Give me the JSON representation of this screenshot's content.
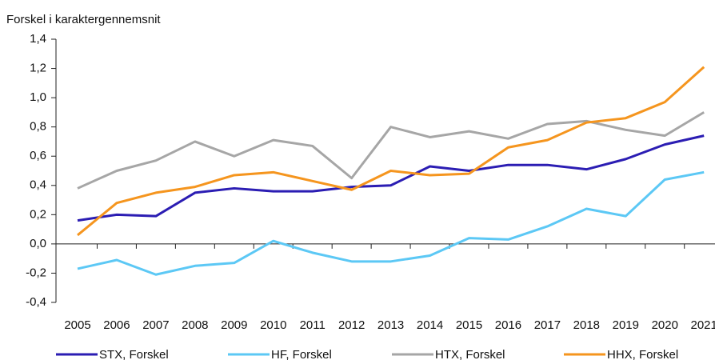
{
  "chart_data": {
    "type": "line",
    "y_label": "Forskel i karaktergennemsnit",
    "categories": [
      "2005",
      "2006",
      "2007",
      "2008",
      "2009",
      "2010",
      "2011",
      "2012",
      "2013",
      "2014",
      "2015",
      "2016",
      "2017",
      "2018",
      "2019",
      "2020",
      "2021"
    ],
    "series": [
      {
        "name": "STX, Forskel",
        "color": "#2b1db3",
        "values": [
          0.16,
          0.2,
          0.19,
          0.35,
          0.38,
          0.36,
          0.36,
          0.39,
          0.4,
          0.53,
          0.5,
          0.54,
          0.54,
          0.51,
          0.58,
          0.68,
          0.74
        ]
      },
      {
        "name": "HF, Forskel",
        "color": "#5cc8f5",
        "values": [
          -0.17,
          -0.11,
          -0.21,
          -0.15,
          -0.13,
          0.02,
          -0.06,
          -0.12,
          -0.12,
          -0.08,
          0.04,
          0.03,
          0.12,
          0.24,
          0.19,
          0.44,
          0.49
        ]
      },
      {
        "name": "HTX, Forskel",
        "color": "#a6a6a6",
        "values": [
          0.38,
          0.5,
          0.57,
          0.7,
          0.6,
          0.71,
          0.67,
          0.45,
          0.8,
          0.73,
          0.77,
          0.72,
          0.82,
          0.84,
          0.78,
          0.74,
          0.9
        ]
      },
      {
        "name": "HHX, Forskel",
        "color": "#f5951e",
        "values": [
          0.06,
          0.28,
          0.35,
          0.39,
          0.47,
          0.49,
          0.43,
          0.37,
          0.5,
          0.47,
          0.48,
          0.66,
          0.71,
          0.83,
          0.86,
          0.97,
          1.21
        ]
      }
    ],
    "ylim": [
      -0.4,
      1.4
    ],
    "yticks": [
      {
        "value": -0.4,
        "label": "-0,4"
      },
      {
        "value": -0.2,
        "label": "-0,2"
      },
      {
        "value": 0,
        "label": "0,0"
      },
      {
        "value": 0.2,
        "label": "0,2"
      },
      {
        "value": 0.4,
        "label": "0,4"
      },
      {
        "value": 0.6,
        "label": "0,6"
      },
      {
        "value": 0.8,
        "label": "0,8"
      },
      {
        "value": 1.0,
        "label": "1,0"
      },
      {
        "value": 1.2,
        "label": "1,2"
      },
      {
        "value": 1.4,
        "label": "1,4"
      }
    ],
    "legend": "bottom"
  }
}
